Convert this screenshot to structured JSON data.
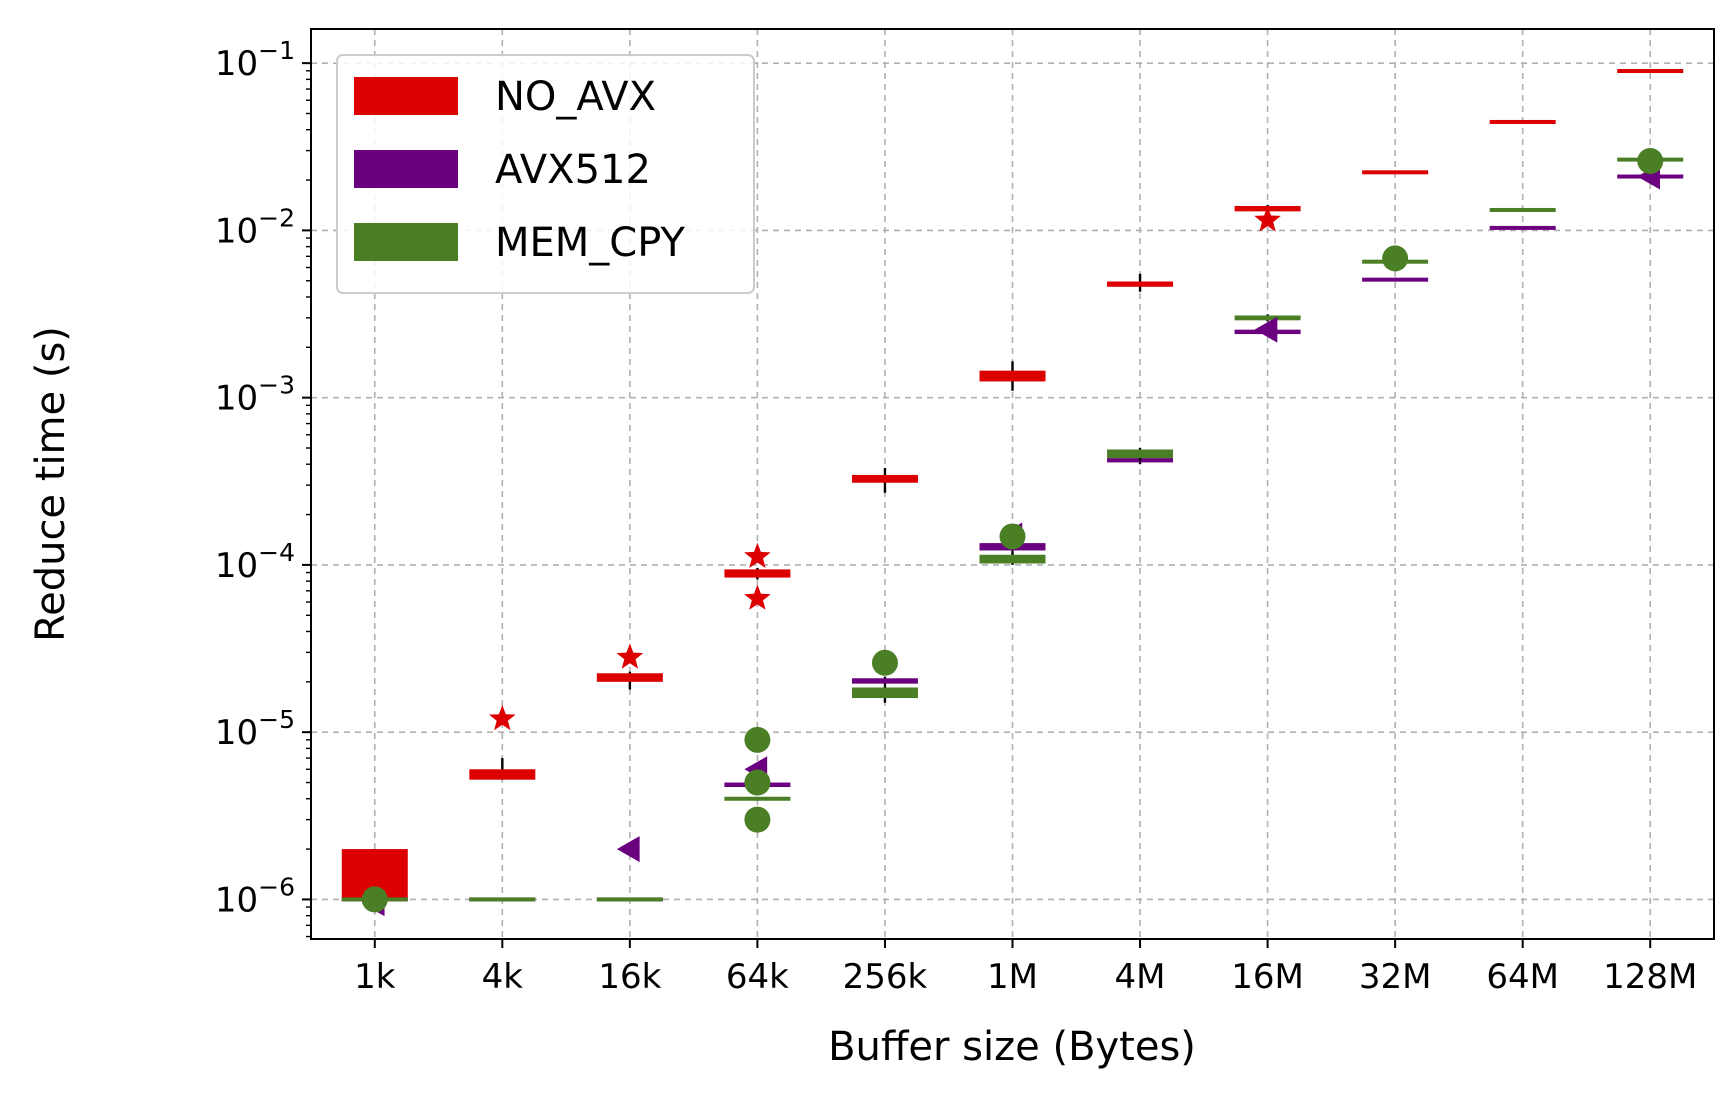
{
  "chart_data": {
    "type": "box",
    "xlabel": "Buffer size (Bytes)",
    "ylabel": "Reduce time (s)",
    "yscale": "log",
    "ylim": [
      5.8e-07,
      0.16
    ],
    "y_ticks": [
      1e-06,
      1e-05,
      0.0001,
      0.001,
      0.01,
      0.1
    ],
    "y_tick_labels": [
      {
        "base": "10",
        "exp": "−6"
      },
      {
        "base": "10",
        "exp": "−5"
      },
      {
        "base": "10",
        "exp": "−4"
      },
      {
        "base": "10",
        "exp": "−3"
      },
      {
        "base": "10",
        "exp": "−2"
      },
      {
        "base": "10",
        "exp": "−1"
      }
    ],
    "grid": true,
    "legend_position": "top-left",
    "categories": [
      "1k",
      "4k",
      "16k",
      "64k",
      "256k",
      "1M",
      "4M",
      "16M",
      "32M",
      "64M",
      "128M"
    ],
    "series": [
      {
        "name": "NO_AVX",
        "color": "#dd0000",
        "outlier_marker": "star",
        "boxes": [
          {
            "q1": 1e-06,
            "q3": 2e-06,
            "whisker_low": 1e-06,
            "whisker_high": 2e-06,
            "outliers": []
          },
          {
            "q1": 5.2e-06,
            "q3": 6e-06,
            "whisker_low": 5.2e-06,
            "whisker_high": 7e-06,
            "outliers": [
              1.2e-05
            ]
          },
          {
            "q1": 2e-05,
            "q3": 2.25e-05,
            "whisker_low": 1.8e-05,
            "whisker_high": 2.3e-05,
            "outliers": [
              2.8e-05
            ]
          },
          {
            "q1": 8.4e-05,
            "q3": 9.4e-05,
            "whisker_low": 8.2e-05,
            "whisker_high": 9.6e-05,
            "outliers": [
              0.000112,
              6.3e-05
            ]
          },
          {
            "q1": 0.00031,
            "q3": 0.000345,
            "whisker_low": 0.00027,
            "whisker_high": 0.00038,
            "outliers": []
          },
          {
            "q1": 0.00125,
            "q3": 0.00145,
            "whisker_low": 0.0011,
            "whisker_high": 0.00165,
            "outliers": []
          },
          {
            "q1": 0.0046,
            "q3": 0.00495,
            "whisker_low": 0.0043,
            "whisker_high": 0.0055,
            "outliers": []
          },
          {
            "q1": 0.013,
            "q3": 0.014,
            "whisker_low": 0.0128,
            "whisker_high": 0.0142,
            "outliers": [
              0.0115
            ]
          },
          {
            "q1": 0.022,
            "q3": 0.0225,
            "whisker_low": 0.022,
            "whisker_high": 0.0225,
            "outliers": []
          },
          {
            "q1": 0.044,
            "q3": 0.045,
            "whisker_low": 0.044,
            "whisker_high": 0.045,
            "outliers": []
          },
          {
            "q1": 0.089,
            "q3": 0.0905,
            "whisker_low": 0.089,
            "whisker_high": 0.0905,
            "outliers": []
          }
        ]
      },
      {
        "name": "AVX512",
        "color": "#6a007f",
        "outlier_marker": "triangle-left",
        "boxes": [
          {
            "q1": 1e-06,
            "q3": 1e-06,
            "whisker_low": 1e-06,
            "whisker_high": 1e-06,
            "outliers": [
              9.5e-07
            ]
          },
          {
            "q1": 1e-06,
            "q3": 1e-06,
            "whisker_low": 1e-06,
            "whisker_high": 1e-06,
            "outliers": []
          },
          {
            "q1": 1e-06,
            "q3": 1e-06,
            "whisker_low": 1e-06,
            "whisker_high": 1e-06,
            "outliers": [
              2e-06
            ]
          },
          {
            "q1": 4.7e-06,
            "q3": 5e-06,
            "whisker_low": 4.5e-06,
            "whisker_high": 5.2e-06,
            "outliers": [
              6e-06
            ]
          },
          {
            "q1": 1.95e-05,
            "q3": 2.1e-05,
            "whisker_low": 1.9e-05,
            "whisker_high": 2.15e-05,
            "outliers": []
          },
          {
            "q1": 0.000122,
            "q3": 0.000135,
            "whisker_low": 0.00012,
            "whisker_high": 0.000138,
            "outliers": [
              0.00015
            ]
          },
          {
            "q1": 0.00041,
            "q3": 0.000435,
            "whisker_low": 0.0004,
            "whisker_high": 0.00044,
            "outliers": []
          },
          {
            "q1": 0.0024,
            "q3": 0.00255,
            "whisker_low": 0.00235,
            "whisker_high": 0.0026,
            "outliers": [
              0.00255
            ]
          },
          {
            "q1": 0.005,
            "q3": 0.00515,
            "whisker_low": 0.005,
            "whisker_high": 0.00515,
            "outliers": []
          },
          {
            "q1": 0.0102,
            "q3": 0.0105,
            "whisker_low": 0.0102,
            "whisker_high": 0.0105,
            "outliers": []
          },
          {
            "q1": 0.0205,
            "q3": 0.0215,
            "whisker_low": 0.0205,
            "whisker_high": 0.0215,
            "outliers": [
              0.021
            ]
          }
        ]
      },
      {
        "name": "MEM_CPY",
        "color": "#4a7f25",
        "outlier_marker": "circle",
        "boxes": [
          {
            "q1": 1e-06,
            "q3": 1e-06,
            "whisker_low": 1e-06,
            "whisker_high": 1e-06,
            "outliers": [
              1e-06
            ]
          },
          {
            "q1": 1e-06,
            "q3": 1e-06,
            "whisker_low": 1e-06,
            "whisker_high": 1e-06,
            "outliers": []
          },
          {
            "q1": 1e-06,
            "q3": 1e-06,
            "whisker_low": 1e-06,
            "whisker_high": 1e-06,
            "outliers": []
          },
          {
            "q1": 3.9e-06,
            "q3": 4.1e-06,
            "whisker_low": 3.9e-06,
            "whisker_high": 4.1e-06,
            "outliers": [
              9e-06,
              5e-06,
              3e-06
            ]
          },
          {
            "q1": 1.6e-05,
            "q3": 1.85e-05,
            "whisker_low": 1.5e-05,
            "whisker_high": 1.9e-05,
            "outliers": [
              2.6e-05
            ]
          },
          {
            "q1": 0.000102,
            "q3": 0.000115,
            "whisker_low": 0.0001,
            "whisker_high": 0.00012,
            "outliers": [
              0.000148
            ]
          },
          {
            "q1": 0.000435,
            "q3": 0.00049,
            "whisker_low": 0.00042,
            "whisker_high": 0.0005,
            "outliers": []
          },
          {
            "q1": 0.0029,
            "q3": 0.0031,
            "whisker_low": 0.00285,
            "whisker_high": 0.00315,
            "outliers": []
          },
          {
            "q1": 0.0064,
            "q3": 0.0066,
            "whisker_low": 0.0064,
            "whisker_high": 0.0066,
            "outliers": [
              0.0068
            ]
          },
          {
            "q1": 0.013,
            "q3": 0.0135,
            "whisker_low": 0.013,
            "whisker_high": 0.0135,
            "outliers": []
          },
          {
            "q1": 0.026,
            "q3": 0.027,
            "whisker_low": 0.026,
            "whisker_high": 0.027,
            "outliers": [
              0.026
            ]
          }
        ]
      }
    ]
  }
}
